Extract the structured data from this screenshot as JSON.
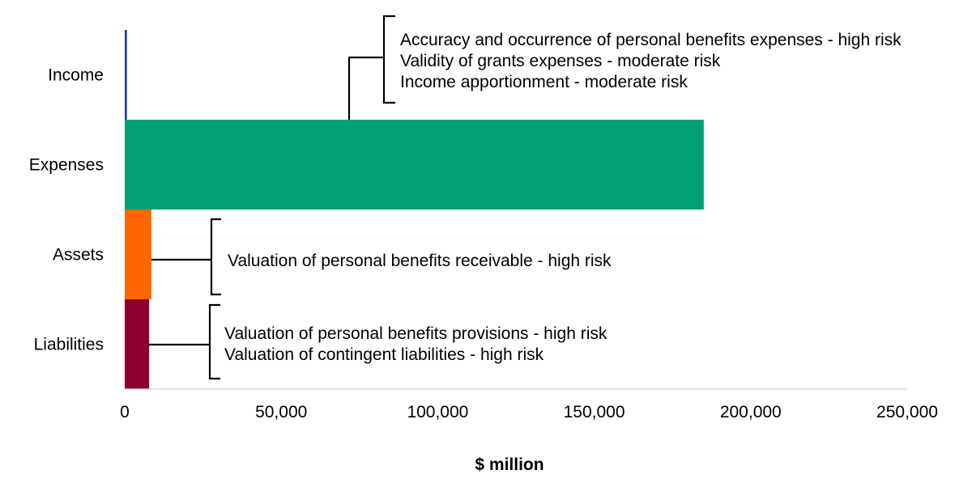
{
  "chart_data": {
    "type": "bar",
    "orientation": "horizontal",
    "stacked": true,
    "categories": [
      "Income",
      "Expenses",
      "Assets",
      "Liabilities"
    ],
    "series": [
      {
        "values": [
          700,
          185000,
          8500,
          7800
        ],
        "colors": [
          "#1f3fa3",
          "#00a074",
          "#ff6600",
          "#8b0030"
        ]
      }
    ],
    "xlabel": "$ million",
    "ylabel": "",
    "title": "",
    "xlim": [
      0,
      250000
    ],
    "xticks": [
      0,
      50000,
      100000,
      150000,
      200000,
      250000
    ],
    "xtick_labels": [
      "0",
      "50,000",
      "100,000",
      "150,000",
      "200,000",
      "250,000"
    ],
    "grid": false,
    "legend": "none",
    "annotations": [
      {
        "target": "Income and Expenses",
        "lines": [
          "Accuracy and occurrence of personal benefits expenses - high risk",
          "Validity of grants expenses - moderate risk",
          "Income apportionment - moderate risk"
        ]
      },
      {
        "target": "Assets",
        "lines": [
          "Valuation of personal benefits receivable - high risk"
        ]
      },
      {
        "target": "Liabilities",
        "lines": [
          "Valuation of personal benefits provisions - high risk",
          "Valuation of contingent liabilities - high risk"
        ]
      }
    ]
  }
}
